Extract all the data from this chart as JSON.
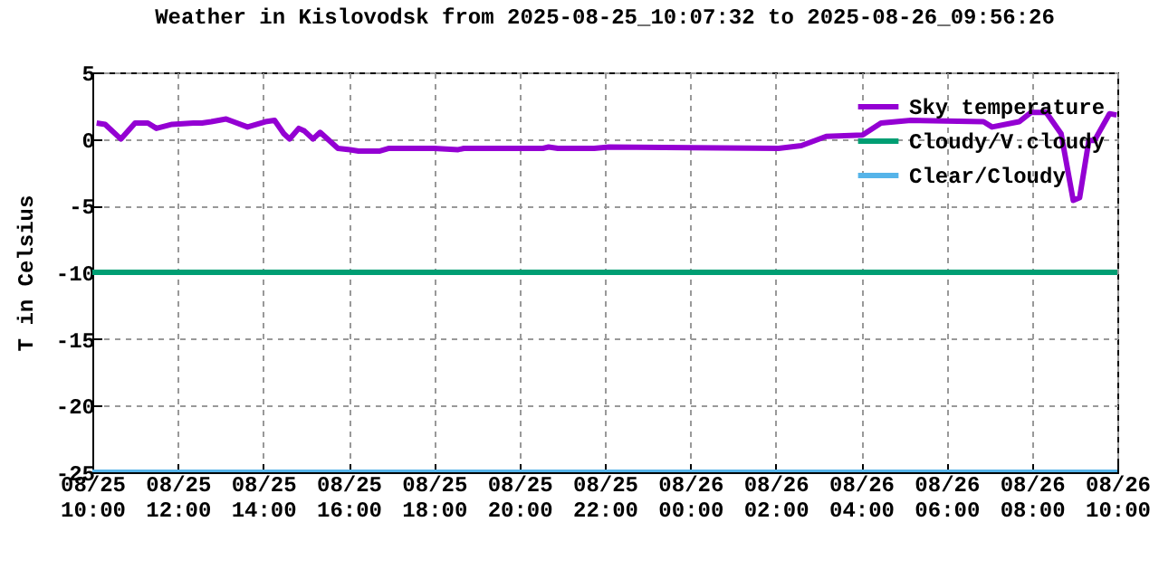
{
  "chart_data": {
    "type": "line",
    "title": "Weather in Kislovodsk from 2025-08-25_10:07:32 to 2025-08-26_09:56:26",
    "ylabel": "T in Celsius",
    "xlim": [
      "2025-08-25T10:00",
      "2025-08-26T10:00"
    ],
    "ylim": [
      -25,
      5
    ],
    "xticks": [
      {
        "value": "2025-08-25T10:00",
        "label": "08/25\n10:00"
      },
      {
        "value": "2025-08-25T12:00",
        "label": "08/25\n12:00"
      },
      {
        "value": "2025-08-25T14:00",
        "label": "08/25\n14:00"
      },
      {
        "value": "2025-08-25T16:00",
        "label": "08/25\n16:00"
      },
      {
        "value": "2025-08-25T18:00",
        "label": "08/25\n18:00"
      },
      {
        "value": "2025-08-25T20:00",
        "label": "08/25\n20:00"
      },
      {
        "value": "2025-08-25T22:00",
        "label": "08/25\n22:00"
      },
      {
        "value": "2025-08-26T00:00",
        "label": "08/26\n00:00"
      },
      {
        "value": "2025-08-26T02:00",
        "label": "08/26\n02:00"
      },
      {
        "value": "2025-08-26T04:00",
        "label": "08/26\n04:00"
      },
      {
        "value": "2025-08-26T06:00",
        "label": "08/26\n06:00"
      },
      {
        "value": "2025-08-26T08:00",
        "label": "08/26\n08:00"
      },
      {
        "value": "2025-08-26T10:00",
        "label": "08/26\n10:00"
      }
    ],
    "yticks": [
      -25,
      -20,
      -15,
      -10,
      -5,
      0,
      5
    ],
    "grid": true,
    "legend": "top right",
    "series": [
      {
        "name": "Sky temperature",
        "color": "#9400d3",
        "x": [
          "2025-08-25T10:06",
          "2025-08-25T10:18",
          "2025-08-25T10:40",
          "2025-08-25T11:00",
          "2025-08-25T11:18",
          "2025-08-25T11:30",
          "2025-08-25T11:52",
          "2025-08-25T12:22",
          "2025-08-25T12:34",
          "2025-08-25T12:47",
          "2025-08-25T13:08",
          "2025-08-25T13:38",
          "2025-08-25T14:03",
          "2025-08-25T14:16",
          "2025-08-25T14:29",
          "2025-08-25T14:37",
          "2025-08-25T14:50",
          "2025-08-25T14:58",
          "2025-08-25T15:10",
          "2025-08-25T15:20",
          "2025-08-25T15:45",
          "2025-08-25T16:02",
          "2025-08-25T16:14",
          "2025-08-25T16:44",
          "2025-08-25T16:57",
          "2025-08-25T18:00",
          "2025-08-25T18:34",
          "2025-08-25T18:42",
          "2025-08-25T20:33",
          "2025-08-25T20:41",
          "2025-08-25T20:54",
          "2025-08-25T21:45",
          "2025-08-25T22:06",
          "2025-08-26T02:04",
          "2025-08-26T02:20",
          "2025-08-26T02:36",
          "2025-08-26T03:11",
          "2025-08-26T04:02",
          "2025-08-26T04:28",
          "2025-08-26T05:10",
          "2025-08-26T06:52",
          "2025-08-26T07:04",
          "2025-08-26T07:42",
          "2025-08-26T07:59",
          "2025-08-26T08:20",
          "2025-08-26T08:41",
          "2025-08-26T08:58",
          "2025-08-26T09:07",
          "2025-08-26T09:20",
          "2025-08-26T09:28",
          "2025-08-26T09:49",
          "2025-08-26T09:59"
        ],
        "values": [
          1.2,
          1.1,
          0.0,
          1.2,
          1.2,
          0.8,
          1.1,
          1.2,
          1.2,
          1.3,
          1.5,
          0.9,
          1.3,
          1.4,
          0.4,
          0.0,
          0.8,
          0.6,
          0.0,
          0.5,
          -0.7,
          -0.8,
          -0.9,
          -0.9,
          -0.7,
          -0.7,
          -0.8,
          -0.7,
          -0.7,
          -0.6,
          -0.7,
          -0.7,
          -0.6,
          -0.7,
          -0.6,
          -0.5,
          0.2,
          0.3,
          1.2,
          1.4,
          1.3,
          0.9,
          1.3,
          2.0,
          2.0,
          0.4,
          -4.6,
          -4.4,
          -0.1,
          -0.1,
          1.9,
          1.8
        ]
      },
      {
        "name": "Cloudy/V.cloudy",
        "color": "#009e73",
        "x": [
          "2025-08-25T10:00",
          "2025-08-26T10:00"
        ],
        "values": [
          -10,
          -10
        ]
      },
      {
        "name": "Clear/Cloudy",
        "color": "#56b4e9",
        "x": [
          "2025-08-25T10:00",
          "2025-08-26T10:00"
        ],
        "values": [
          -25,
          -25
        ]
      }
    ]
  }
}
